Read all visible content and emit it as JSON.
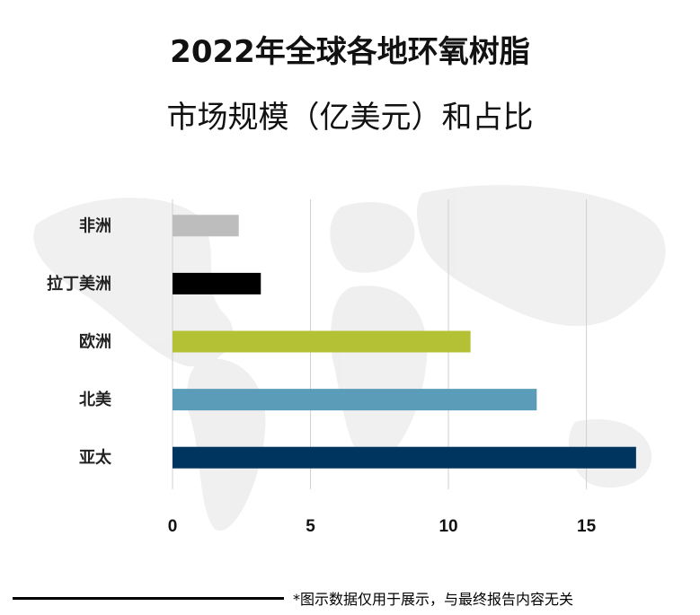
{
  "title_line1": "2022年全球各地环氧树脂",
  "title_line2": "市场规模（亿美元）和占比",
  "footnote": "*图示数据仅用于展示，与最终报告内容无关",
  "chart_data": {
    "type": "bar",
    "orientation": "horizontal",
    "title": "2022年全球各地环氧树脂市场规模（亿美元）和占比",
    "categories": [
      "非洲",
      "拉丁美洲",
      "欧洲",
      "北美",
      "亚太"
    ],
    "values": [
      2.4,
      3.2,
      10.8,
      13.2,
      16.8
    ],
    "colors": [
      "#bdbdbd",
      "#000000",
      "#b5c135",
      "#5b9cb9",
      "#003560"
    ],
    "xlim": [
      0,
      17
    ],
    "xticks": [
      0,
      5,
      10,
      15
    ],
    "grid": true,
    "xlabel": "",
    "ylabel": ""
  }
}
